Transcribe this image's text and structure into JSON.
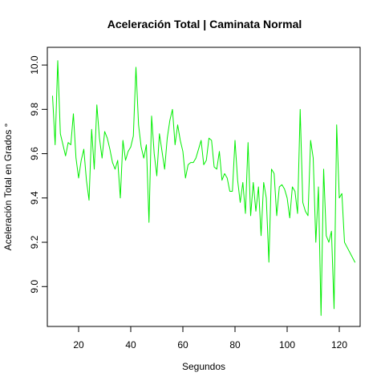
{
  "chart_data": {
    "type": "line",
    "title": "Aceleración Total | Caminata Normal",
    "xlabel": "Segundos",
    "ylabel": "Aceleración Total en Grados °",
    "xlim": [
      8,
      128
    ],
    "ylim": [
      8.82,
      10.08
    ],
    "x_ticks": [
      20,
      40,
      60,
      80,
      100,
      120
    ],
    "y_ticks": [
      9.0,
      9.2,
      9.4,
      9.6,
      9.8,
      10.0
    ],
    "x_tick_labels": [
      "20",
      "40",
      "60",
      "80",
      "100",
      "120"
    ],
    "y_tick_labels": [
      "9.0",
      "9.2",
      "9.4",
      "9.6",
      "9.8",
      "10.0"
    ],
    "grid": false,
    "legend": "none",
    "colors": {
      "line": "#00ee00",
      "axis": "#000000",
      "background": "#ffffff"
    },
    "series": [
      {
        "x": [
          10,
          11,
          12,
          13,
          14,
          15,
          16,
          17,
          18,
          19,
          20,
          21,
          22,
          23,
          24,
          25,
          26,
          27,
          28,
          29,
          30,
          31,
          32,
          33,
          34,
          35,
          36,
          37,
          38,
          39,
          40,
          41,
          42,
          43,
          44,
          45,
          46,
          47,
          48,
          49,
          50,
          51,
          52,
          53,
          54,
          55,
          56,
          57,
          58,
          59,
          60,
          61,
          62,
          63,
          64,
          65,
          66,
          67,
          68,
          69,
          70,
          71,
          72,
          73,
          74,
          75,
          76,
          77,
          78,
          79,
          80,
          81,
          82,
          83,
          84,
          85,
          86,
          87,
          88,
          89,
          90,
          91,
          92,
          93,
          94,
          95,
          96,
          97,
          98,
          99,
          100,
          101,
          102,
          103,
          104,
          105,
          106,
          107,
          108,
          109,
          110,
          111,
          112,
          113,
          114,
          115,
          116,
          117,
          118,
          119,
          120,
          121,
          122,
          126
        ],
        "values": [
          9.86,
          9.64,
          10.02,
          9.69,
          9.64,
          9.59,
          9.65,
          9.64,
          9.78,
          9.58,
          9.49,
          9.57,
          9.62,
          9.48,
          9.39,
          9.71,
          9.53,
          9.82,
          9.67,
          9.58,
          9.7,
          9.67,
          9.62,
          9.56,
          9.53,
          9.57,
          9.4,
          9.66,
          9.57,
          9.61,
          9.63,
          9.68,
          9.99,
          9.73,
          9.63,
          9.58,
          9.64,
          9.29,
          9.77,
          9.6,
          9.5,
          9.69,
          9.61,
          9.53,
          9.67,
          9.75,
          9.8,
          9.64,
          9.73,
          9.66,
          9.61,
          9.49,
          9.55,
          9.56,
          9.56,
          9.58,
          9.62,
          9.66,
          9.55,
          9.57,
          9.67,
          9.66,
          9.54,
          9.53,
          9.61,
          9.48,
          9.51,
          9.49,
          9.43,
          9.43,
          9.66,
          9.48,
          9.38,
          9.47,
          9.33,
          9.65,
          9.32,
          9.47,
          9.34,
          9.45,
          9.23,
          9.47,
          9.4,
          9.11,
          9.53,
          9.51,
          9.32,
          9.45,
          9.46,
          9.44,
          9.4,
          9.31,
          9.45,
          9.43,
          9.33,
          9.8,
          9.38,
          9.34,
          9.32,
          9.66,
          9.58,
          9.2,
          9.45,
          8.87,
          9.53,
          9.23,
          9.2,
          9.25,
          8.9,
          9.73,
          9.4,
          9.42,
          9.2,
          9.11
        ]
      }
    ]
  }
}
